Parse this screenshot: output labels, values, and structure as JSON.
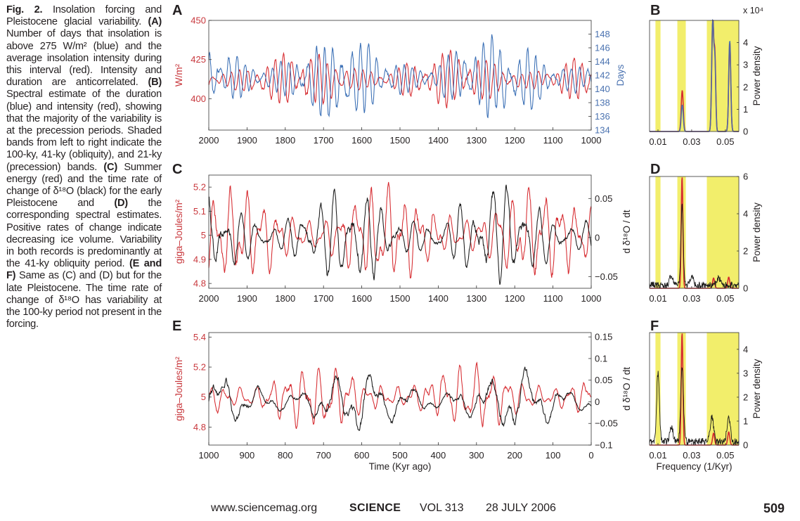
{
  "caption": {
    "label": "Fig. 2.",
    "title": "Insolation forcing and Pleistocene glacial variability.",
    "partA_letter": "A",
    "partA_text": "Number of days that insolation is above 275 W/m² (blue) and the average insolation intensity during this interval (red). Intensity and duration are anticorrelated.",
    "partB_letter": "B",
    "partB_text": "Spectral estimate of the duration (blue) and intensity (red), showing that the majority of the variability is at the precession periods. Shaded bands from left to right indicate the 100-ky, 41-ky (obliquity), and 21-ky (precession) bands.",
    "partC_letter": "C",
    "partC_text": "Summer energy (red) and the time rate of change of δ¹⁸O (black) for the early Pleistocene and",
    "partD_letter": "D",
    "partD_text": "the corresponding spectral estimates. Positive rates of change indicate decreasing ice volume. Variability in both records is predominantly at the 41-ky obliquity period.",
    "partEF_letters": [
      "E",
      "F"
    ],
    "partEF_text1": "Same as",
    "partEF_text2": "and",
    "partEF_text3": "but for the late Pleistocene. The time rate of change of δ¹⁸O has variability at the 100-ky period not present in the forcing.",
    "ref_c": "(C)",
    "ref_d": "(D)"
  },
  "footer": {
    "url": "www.sciencemag.org",
    "journal": "SCIENCE",
    "volume": "VOL 313",
    "date": "28 JULY 2006",
    "page": "509"
  },
  "colors": {
    "red": "#d62a2f",
    "blue": "#3a6fb5",
    "black": "#1a1a1a",
    "band": "#f2ee6b",
    "axisRed": "#c8373c",
    "axisBlue": "#4a72b0"
  },
  "chart_data": [
    {
      "panel": "A",
      "type": "line",
      "xlabel": "",
      "xlim": [
        2000,
        1000
      ],
      "xticks": [
        "2000",
        "1900",
        "1800",
        "1700",
        "1600",
        "1500",
        "1400",
        "1300",
        "1200",
        "1100",
        "1000"
      ],
      "ylabel_left": "W/m²",
      "ylim_left": [
        380,
        450
      ],
      "yticks_left": [
        "450",
        "425",
        "400"
      ],
      "ylabel_right": "Days",
      "ylim_right": [
        134,
        150
      ],
      "yticks_right": [
        "148",
        "146",
        "144",
        "142",
        "140",
        "138",
        "136",
        "134"
      ],
      "series": [
        {
          "name": "average insolation intensity",
          "color": "red",
          "axis": "left",
          "mean": 412,
          "amplitude": 15,
          "periods": [
            23,
            19
          ]
        },
        {
          "name": "days above 275 W/m²",
          "color": "blue",
          "axis": "right",
          "mean": 141.5,
          "amplitude": 5,
          "periods": [
            23,
            19
          ]
        }
      ]
    },
    {
      "panel": "B",
      "type": "line",
      "xlabel": "",
      "xlim": [
        0.005,
        0.058
      ],
      "xticks": [
        "0.01",
        "0.03",
        "0.05"
      ],
      "ylabel": "Power density",
      "ylim": [
        0,
        5
      ],
      "yticks": [
        "4",
        "3",
        "2",
        "1",
        "0"
      ],
      "yscale_label": "x 10⁴",
      "bands": [
        [
          0.0085,
          0.0115
        ],
        [
          0.0215,
          0.0265
        ],
        [
          0.039,
          0.058
        ]
      ],
      "series": [
        {
          "name": "intensity",
          "color": "red",
          "peaks": [
            {
              "f": 0.0244,
              "p": 1.85,
              "w": 0.0006
            },
            {
              "f": 0.0425,
              "p": 5.0,
              "w": 0.0006
            },
            {
              "f": 0.0438,
              "p": 3.2,
              "w": 0.0005
            },
            {
              "f": 0.0526,
              "p": 4.0,
              "w": 0.0006
            }
          ]
        },
        {
          "name": "duration",
          "color": "blue",
          "peaks": [
            {
              "f": 0.0244,
              "p": 1.2,
              "w": 0.0006
            },
            {
              "f": 0.0425,
              "p": 5.0,
              "w": 0.0006
            },
            {
              "f": 0.0438,
              "p": 3.0,
              "w": 0.0005
            },
            {
              "f": 0.0526,
              "p": 4.1,
              "w": 0.0006
            }
          ]
        }
      ]
    },
    {
      "panel": "C",
      "type": "line",
      "xlabel": "",
      "xlim": [
        2000,
        1000
      ],
      "xticks": [
        "2000",
        "1900",
        "1800",
        "1700",
        "1600",
        "1500",
        "1400",
        "1300",
        "1200",
        "1100",
        "1000"
      ],
      "ylabel_left": "giga–Joules/m²",
      "ylim_left": [
        4.78,
        5.25
      ],
      "yticks_left": [
        "5.2",
        "5.1",
        "5",
        "4.9",
        "4.8"
      ],
      "ylabel_right": "d δ¹⁸O / dt",
      "ylim_right": [
        -0.065,
        0.08
      ],
      "yticks_right": [
        "0.05",
        "0",
        "−0.05"
      ],
      "series": [
        {
          "name": "summer energy",
          "color": "red",
          "axis": "left",
          "mean": 5.0,
          "amplitude": 0.17,
          "periods": [
            41,
            23
          ]
        },
        {
          "name": "d δ18O / dt",
          "color": "black",
          "axis": "right",
          "mean": 0.0,
          "amplitude": 0.05,
          "periods": [
            41,
            30
          ]
        }
      ]
    },
    {
      "panel": "D",
      "type": "line",
      "xlabel": "",
      "xlim": [
        0.005,
        0.058
      ],
      "xticks": [
        "0.01",
        "0.03",
        "0.05"
      ],
      "ylabel": "Power density",
      "ylim": [
        0,
        6
      ],
      "yticks": [
        "6",
        "4",
        "2",
        "0"
      ],
      "bands": [
        [
          0.0085,
          0.0115
        ],
        [
          0.0215,
          0.0265
        ],
        [
          0.039,
          0.058
        ]
      ],
      "series": [
        {
          "name": "summer energy",
          "color": "red",
          "peaks": [
            {
              "f": 0.0243,
              "p": 6.0,
              "w": 0.0005
            },
            {
              "f": 0.043,
              "p": 0.55,
              "w": 0.0006
            },
            {
              "f": 0.052,
              "p": 0.6,
              "w": 0.0006
            }
          ]
        },
        {
          "name": "d δ18O / dt",
          "color": "black",
          "peaks": [
            {
              "f": 0.0243,
              "p": 4.2,
              "w": 0.0007
            },
            {
              "f": 0.018,
              "p": 0.5,
              "w": 0.001
            },
            {
              "f": 0.03,
              "p": 0.45,
              "w": 0.001
            },
            {
              "f": 0.046,
              "p": 0.4,
              "w": 0.001
            }
          ]
        }
      ]
    },
    {
      "panel": "E",
      "type": "line",
      "xlabel": "Time (Kyr ago)",
      "xlim": [
        1000,
        0
      ],
      "xticks": [
        "1000",
        "900",
        "800",
        "700",
        "600",
        "500",
        "400",
        "300",
        "200",
        "100",
        "0"
      ],
      "ylabel_left": "giga–Joules/m²",
      "ylim_left": [
        4.68,
        5.43
      ],
      "yticks_left": [
        "5.4",
        "5.2",
        "5",
        "4.8"
      ],
      "ylabel_right": "d δ¹⁸O / dt",
      "ylim_right": [
        -0.1,
        0.16
      ],
      "yticks_right": [
        "0.15",
        "0.1",
        "0.05",
        "0",
        "−0.05",
        "−0.1"
      ],
      "series": [
        {
          "name": "summer energy",
          "color": "red",
          "axis": "left",
          "mean": 5.0,
          "amplitude": 0.18,
          "periods": [
            41,
            23
          ]
        },
        {
          "name": "d δ18O / dt",
          "color": "black",
          "axis": "right",
          "mean": 0.0,
          "amplitude": 0.06,
          "periods": [
            100,
            41
          ]
        }
      ]
    },
    {
      "panel": "F",
      "type": "line",
      "xlabel": "Frequency (1/Kyr)",
      "xlim": [
        0.005,
        0.058
      ],
      "xticks": [
        "0.01",
        "0.03",
        "0.05"
      ],
      "ylabel": "Power density",
      "ylim": [
        0,
        4.7
      ],
      "yticks": [
        "4",
        "3",
        "2",
        "1",
        "0"
      ],
      "bands": [
        [
          0.0085,
          0.0115
        ],
        [
          0.0215,
          0.0265
        ],
        [
          0.039,
          0.058
        ]
      ],
      "series": [
        {
          "name": "summer energy",
          "color": "red",
          "peaks": [
            {
              "f": 0.0243,
              "p": 4.7,
              "w": 0.0005
            },
            {
              "f": 0.043,
              "p": 0.5,
              "w": 0.0006
            },
            {
              "f": 0.052,
              "p": 0.55,
              "w": 0.0006
            }
          ]
        },
        {
          "name": "d δ18O / dt",
          "color": "black",
          "peaks": [
            {
              "f": 0.01,
              "p": 2.9,
              "w": 0.0008
            },
            {
              "f": 0.0243,
              "p": 3.2,
              "w": 0.0008
            },
            {
              "f": 0.018,
              "p": 0.6,
              "w": 0.001
            },
            {
              "f": 0.042,
              "p": 1.0,
              "w": 0.001
            },
            {
              "f": 0.052,
              "p": 1.0,
              "w": 0.001
            }
          ]
        }
      ]
    }
  ],
  "panel_letters": [
    "A",
    "B",
    "C",
    "D",
    "E",
    "F"
  ]
}
